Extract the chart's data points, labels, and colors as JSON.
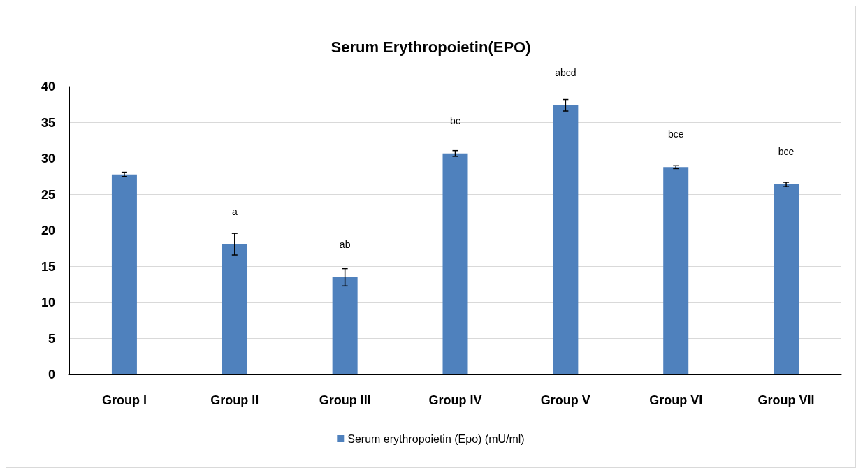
{
  "chart_data": {
    "type": "bar",
    "title": "Serum Erythropoietin(EPO)",
    "categories": [
      "Group I",
      "Group II",
      "Group III",
      "Group IV",
      "Group V",
      "Group VI",
      "Group VII"
    ],
    "series": [
      {
        "name": "Serum erythropoietin (Epo) (mU/ml)",
        "color": "#4f81bd",
        "values": [
          27.8,
          18.1,
          13.5,
          30.7,
          37.4,
          28.8,
          26.4
        ],
        "errors": [
          0.3,
          1.5,
          1.2,
          0.4,
          0.8,
          0.2,
          0.3
        ],
        "value_labels": [
          null,
          "a",
          "ab",
          "bc",
          "abcd",
          "bce",
          "bce"
        ]
      }
    ],
    "ylim": [
      0,
      40
    ],
    "yticks": [
      0,
      5,
      10,
      15,
      20,
      25,
      30,
      35,
      40
    ],
    "grid": "y",
    "legend": "bottom"
  }
}
